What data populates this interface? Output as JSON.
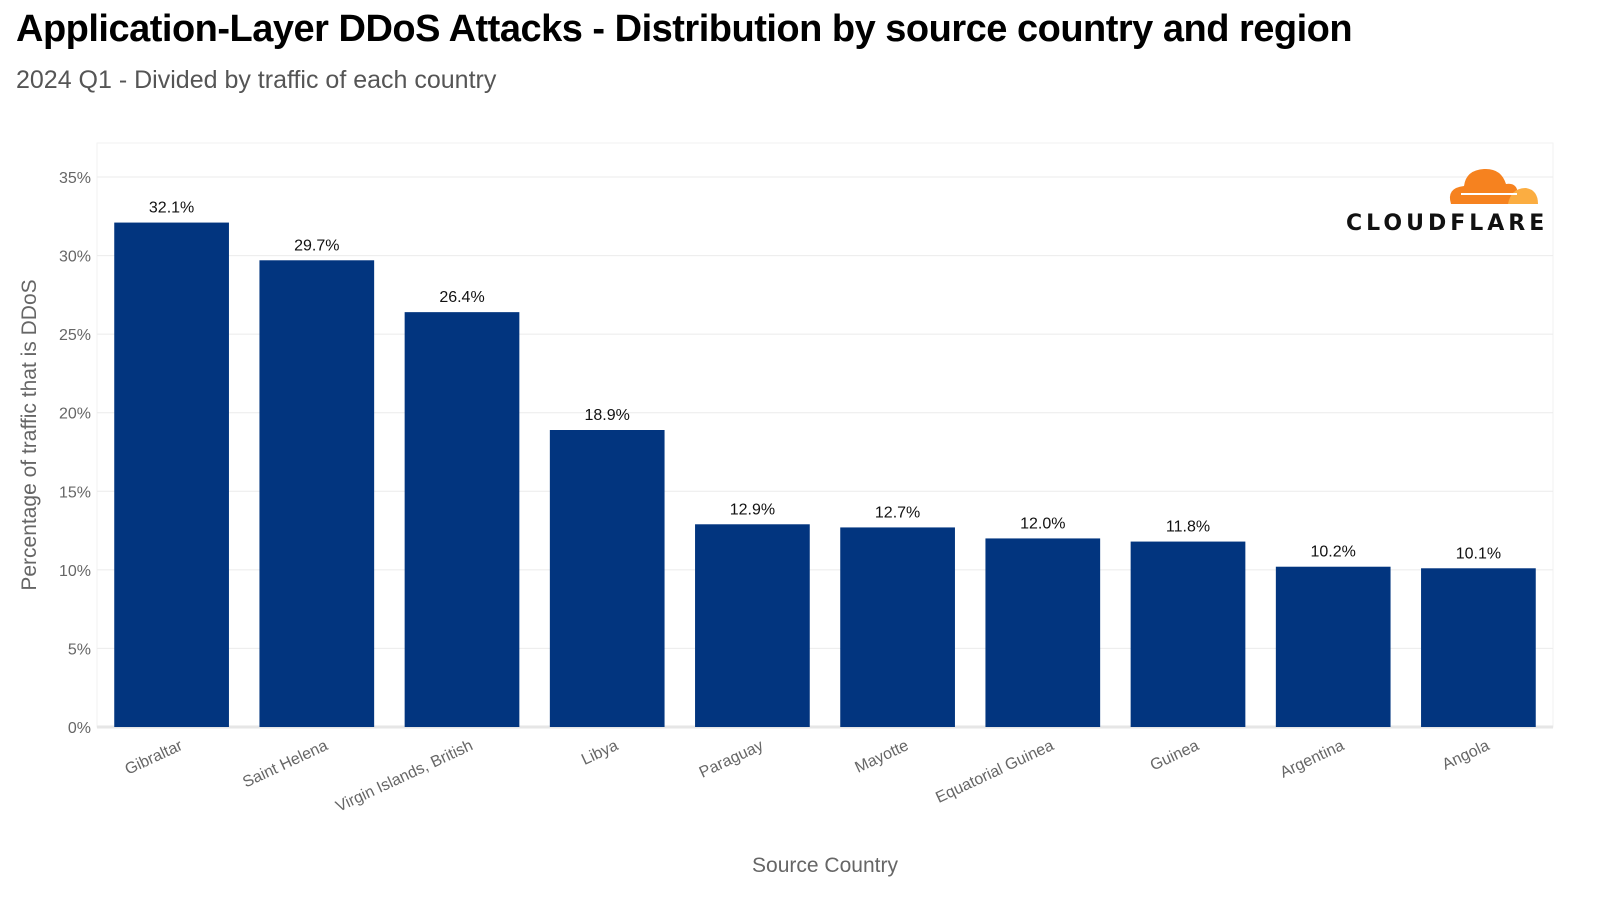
{
  "header": {
    "title": "Application-Layer DDoS Attacks - Distribution by source country and region",
    "subtitle": "2024 Q1 - Divided by traffic of each country"
  },
  "logo": {
    "text": "CLOUDFLARE",
    "icon": "cloudflare-cloud-icon",
    "colors": [
      "#F6821F",
      "#FBAD41"
    ]
  },
  "colors": {
    "bar": "#02357F",
    "grid": "#ebebeb",
    "tick_text": "#666666"
  },
  "chart_data": {
    "type": "bar",
    "title": "Application-Layer DDoS Attacks - Distribution by source country and region",
    "subtitle": "2024 Q1 - Divided by traffic of each country",
    "xlabel": "Source Country",
    "ylabel": "Percentage of traffic that is DDoS",
    "categories": [
      "Gibraltar",
      "Saint Helena",
      "Virgin Islands, British",
      "Libya",
      "Paraguay",
      "Mayotte",
      "Equatorial Guinea",
      "Guinea",
      "Argentina",
      "Angola"
    ],
    "values": [
      32.1,
      29.7,
      26.4,
      18.9,
      12.9,
      12.7,
      12.0,
      11.8,
      10.2,
      10.1
    ],
    "data_labels": [
      "32.1%",
      "29.7%",
      "26.4%",
      "18.9%",
      "12.9%",
      "12.7%",
      "12.0%",
      "11.8%",
      "10.2%",
      "10.1%"
    ],
    "yticks": [
      0,
      5,
      10,
      15,
      20,
      25,
      30,
      35
    ],
    "ytick_labels": [
      "0%",
      "5%",
      "10%",
      "15%",
      "20%",
      "25%",
      "30%",
      "35%"
    ],
    "ylim": [
      0,
      35
    ],
    "grid": true,
    "legend": "none"
  }
}
